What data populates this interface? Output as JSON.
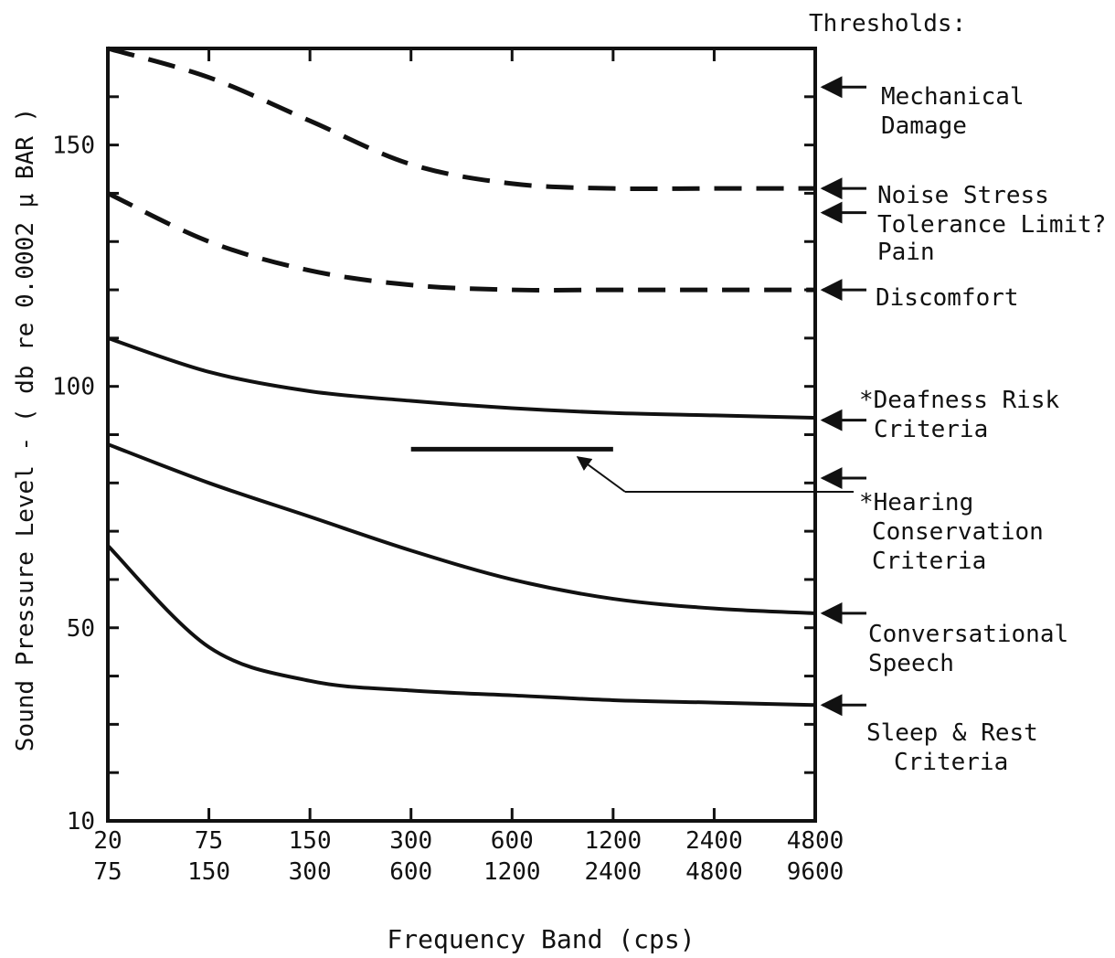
{
  "chart_data": {
    "type": "line",
    "title": "",
    "xlabel": "Frequency Band (cps)",
    "ylabel": "Sound Pressure Level - ( db re 0.0002 μ BAR )",
    "y_ticks": [
      10,
      50,
      100,
      150
    ],
    "ylim": [
      10,
      170
    ],
    "x_tick_labels": [
      [
        "20",
        "75"
      ],
      [
        "75",
        "150"
      ],
      [
        "150",
        "300"
      ],
      [
        "300",
        "600"
      ],
      [
        "600",
        "1200"
      ],
      [
        "1200",
        "2400"
      ],
      [
        "2400",
        "4800"
      ],
      [
        "4800",
        "9600"
      ]
    ],
    "thresholds_heading": "Thresholds:",
    "series": [
      {
        "style": "dashed",
        "values": [
          170,
          164,
          155,
          146,
          142,
          141,
          141,
          141
        ]
      },
      {
        "style": "dashed",
        "values": [
          140,
          130,
          124,
          121,
          120,
          120,
          120,
          120
        ]
      },
      {
        "style": "solid",
        "values": [
          110,
          103,
          99,
          97,
          95.5,
          94.5,
          94,
          93.5
        ]
      },
      {
        "style": "solid",
        "values": [
          88,
          80,
          73,
          66,
          60,
          56,
          54,
          53
        ]
      },
      {
        "style": "solid",
        "values": [
          67,
          46,
          39,
          37,
          36,
          35,
          34.5,
          34
        ]
      },
      {
        "style": "solid",
        "x_range": [
          3,
          5
        ],
        "values": [
          87,
          87
        ]
      }
    ],
    "threshold_markers": [
      {
        "label": [
          "Mechanical",
          "Damage"
        ],
        "value": 162
      },
      {
        "label": [
          "Noise Stress",
          "Tolerance Limit?"
        ],
        "value": 141
      },
      {
        "label": [
          "Pain"
        ],
        "value": 136
      },
      {
        "label": [
          "Discomfort"
        ],
        "value": 120
      },
      {
        "label": [
          "*Deafness Risk",
          "Criteria"
        ],
        "value": 93
      },
      {
        "label": [
          "*Hearing",
          "Conservation",
          "Criteria"
        ],
        "value": 81
      },
      {
        "label": [
          "Conversational",
          "Speech"
        ],
        "value": 53
      },
      {
        "label": [
          "Sleep & Rest",
          "Criteria"
        ],
        "value": 34
      }
    ]
  }
}
